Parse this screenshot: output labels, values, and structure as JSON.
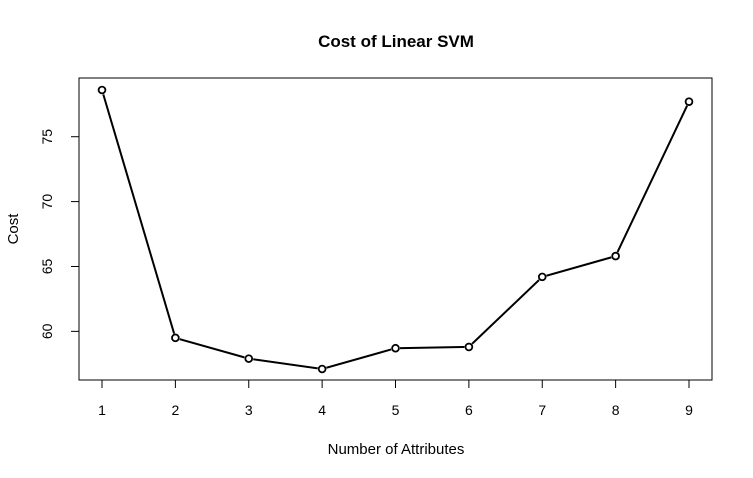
{
  "chart_data": {
    "type": "line",
    "title": "Cost of Linear SVM",
    "xlabel": "Number of Attributes",
    "ylabel": "Cost",
    "x": [
      1,
      2,
      3,
      4,
      5,
      6,
      7,
      8,
      9
    ],
    "series": [
      {
        "values": [
          78.6,
          59.5,
          57.9,
          57.1,
          58.7,
          58.8,
          64.2,
          65.8,
          77.7
        ]
      }
    ],
    "x_ticks": [
      "1",
      "2",
      "3",
      "4",
      "5",
      "6",
      "7",
      "8",
      "9"
    ],
    "y_ticks": [
      "60",
      "65",
      "70",
      "75"
    ],
    "xlim": [
      1,
      9
    ],
    "ylim": [
      57.1,
      78.6
    ],
    "grid": false,
    "line_color": "#000000",
    "marker": "open-circle"
  }
}
